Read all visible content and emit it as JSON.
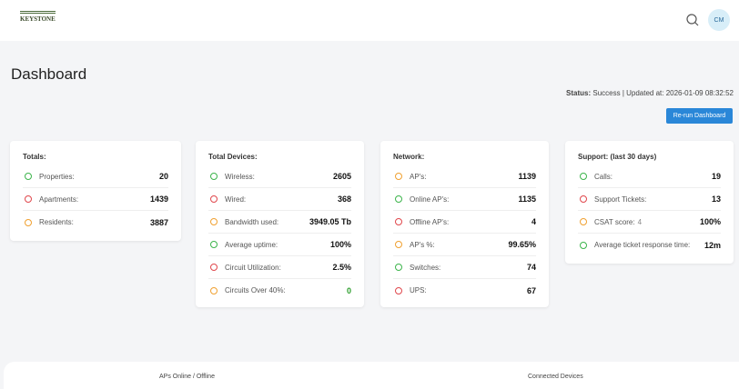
{
  "header": {
    "logo": "KEYSTONE",
    "avatar": "CM"
  },
  "page": {
    "title": "Dashboard",
    "status_label": "Status:",
    "status_text": "Success | Updated at: 2026-01-09 08:32:52",
    "button": "Re-run Dashboard"
  },
  "cards": [
    {
      "title": "Totals:",
      "rows": [
        {
          "label": "Properties:",
          "value": "20",
          "color": "#3cb44b"
        },
        {
          "label": "Apartments:",
          "value": "1439",
          "color": "#e0474c"
        },
        {
          "label": "Residents:",
          "value": "3887",
          "color": "#f0a030"
        }
      ]
    },
    {
      "title": "Total Devices:",
      "rows": [
        {
          "label": "Wireless:",
          "value": "2605",
          "color": "#3cb44b"
        },
        {
          "label": "Wired:",
          "value": "368",
          "color": "#e0474c"
        },
        {
          "label": "Bandwidth used:",
          "value": "3949.05 Tb",
          "color": "#f0a030"
        },
        {
          "label": "Average uptime:",
          "value": "100%",
          "color": "#3cb44b"
        },
        {
          "label": "Circuit Utilization:",
          "value": "2.5%",
          "color": "#e0474c"
        },
        {
          "label": "Circuits Over 40%:",
          "value": "0",
          "color": "#f0a030",
          "value_color": "#2a9d2a"
        }
      ]
    },
    {
      "title": "Network:",
      "rows": [
        {
          "label": "AP's:",
          "value": "1139",
          "color": "#f0a030"
        },
        {
          "label": "Online AP's:",
          "value": "1135",
          "color": "#3cb44b"
        },
        {
          "label": "Offline AP's:",
          "value": "4",
          "color": "#e0474c"
        },
        {
          "label": "AP's %:",
          "value": "99.65%",
          "color": "#f0a030"
        },
        {
          "label": "Switches:",
          "value": "74",
          "color": "#3cb44b"
        },
        {
          "label": "UPS:",
          "value": "67",
          "color": "#e0474c"
        }
      ]
    },
    {
      "title": "Support: (last 30 days)",
      "rows": [
        {
          "label": "Calls:",
          "value": "19",
          "color": "#3cb44b"
        },
        {
          "label": "Support Tickets:",
          "value": "13",
          "color": "#e0474c"
        },
        {
          "label": "CSAT score:",
          "note": "4",
          "value": "100%",
          "color": "#f0a030"
        },
        {
          "label": "Average ticket response time:",
          "value": "12m",
          "color": "#3cb44b"
        }
      ]
    }
  ],
  "bottom": [
    "APs Online / Offline",
    "Connected Devices"
  ]
}
